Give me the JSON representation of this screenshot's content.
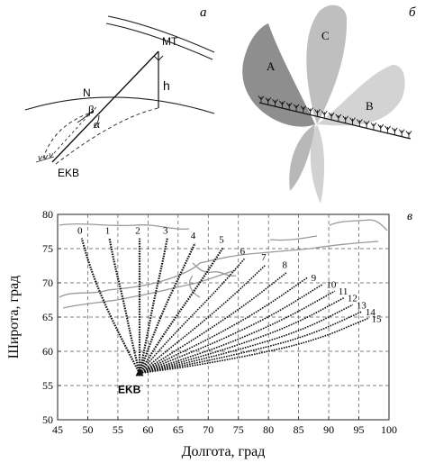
{
  "panel_a": {
    "letter": "а",
    "labels": {
      "mt": "MT",
      "h": "h",
      "n": "N",
      "beta": "β",
      "alpha": "α",
      "ekb": "EKB"
    }
  },
  "panel_b": {
    "letter": "б",
    "lobes": [
      "A",
      "C",
      "B"
    ]
  },
  "panel_c": {
    "letter": "в",
    "station_label": "EKB"
  },
  "chart_data": {
    "type": "line",
    "xlabel": "Долгота, град",
    "ylabel": "Широта, град",
    "xlim": [
      45,
      100
    ],
    "ylim": [
      50,
      80
    ],
    "xticks": [
      45,
      50,
      55,
      60,
      65,
      70,
      75,
      80,
      85,
      90,
      95,
      100
    ],
    "yticks": [
      50,
      55,
      60,
      65,
      70,
      75,
      80
    ],
    "grid": true,
    "origin": {
      "label": "EKB",
      "x": 58.6,
      "y": 56.8
    },
    "series": [
      {
        "name": "0",
        "x": [
          58.6,
          55.5,
          52.5,
          50.3,
          49.0
        ],
        "y": [
          56.8,
          62.0,
          67.5,
          72.5,
          76.5
        ]
      },
      {
        "name": "1",
        "x": [
          58.6,
          57.2,
          55.9,
          54.5,
          53.6
        ],
        "y": [
          56.8,
          62.0,
          67.5,
          72.5,
          76.5
        ]
      },
      {
        "name": "2",
        "x": [
          58.6,
          58.6,
          58.6,
          58.6,
          58.6
        ],
        "y": [
          56.8,
          62.0,
          67.5,
          72.5,
          76.5
        ]
      },
      {
        "name": "3",
        "x": [
          58.6,
          59.8,
          61.0,
          62.3,
          63.2
        ],
        "y": [
          56.8,
          62.0,
          67.5,
          72.5,
          76.5
        ]
      },
      {
        "name": "4",
        "x": [
          58.6,
          60.5,
          62.8,
          65.5,
          67.8
        ],
        "y": [
          56.8,
          61.5,
          66.5,
          71.5,
          75.8
        ]
      },
      {
        "name": "5",
        "x": [
          58.6,
          61.5,
          65.0,
          69.0,
          72.5
        ],
        "y": [
          56.8,
          61.0,
          65.5,
          70.5,
          75.2
        ]
      },
      {
        "name": "6",
        "x": [
          58.6,
          62.2,
          66.5,
          71.5,
          76.0
        ],
        "y": [
          56.8,
          60.5,
          64.5,
          69.0,
          73.5
        ]
      },
      {
        "name": "7",
        "x": [
          58.6,
          63.0,
          68.0,
          74.0,
          79.5
        ],
        "y": [
          56.8,
          60.0,
          63.5,
          68.0,
          72.6
        ]
      },
      {
        "name": "8",
        "x": [
          58.6,
          63.5,
          69.5,
          76.5,
          83.0
        ],
        "y": [
          56.8,
          59.5,
          62.8,
          67.0,
          71.5
        ]
      },
      {
        "name": "9",
        "x": [
          58.6,
          64.0,
          71.0,
          79.0,
          86.5
        ],
        "y": [
          56.8,
          59.2,
          62.2,
          66.2,
          70.8
        ]
      },
      {
        "name": "10",
        "x": [
          58.6,
          64.5,
          72.0,
          81.0,
          89.0
        ],
        "y": [
          56.8,
          58.9,
          61.6,
          65.4,
          69.8
        ]
      },
      {
        "name": "11",
        "x": [
          58.6,
          65.0,
          73.0,
          82.5,
          91.0
        ],
        "y": [
          56.8,
          58.6,
          61.0,
          64.6,
          68.8
        ]
      },
      {
        "name": "12",
        "x": [
          58.6,
          65.5,
          74.0,
          84.0,
          92.5
        ],
        "y": [
          56.8,
          58.4,
          60.6,
          63.8,
          67.8
        ]
      },
      {
        "name": "13",
        "x": [
          58.6,
          66.0,
          75.0,
          85.5,
          94.0
        ],
        "y": [
          56.8,
          58.2,
          60.2,
          63.0,
          66.8
        ]
      },
      {
        "name": "14",
        "x": [
          58.6,
          66.5,
          76.0,
          86.5,
          95.5
        ],
        "y": [
          56.8,
          58.0,
          59.8,
          62.2,
          65.8
        ]
      },
      {
        "name": "15",
        "x": [
          58.6,
          67.0,
          77.0,
          87.5,
          96.5
        ],
        "y": [
          56.8,
          57.8,
          59.4,
          61.5,
          64.8
        ]
      }
    ]
  }
}
